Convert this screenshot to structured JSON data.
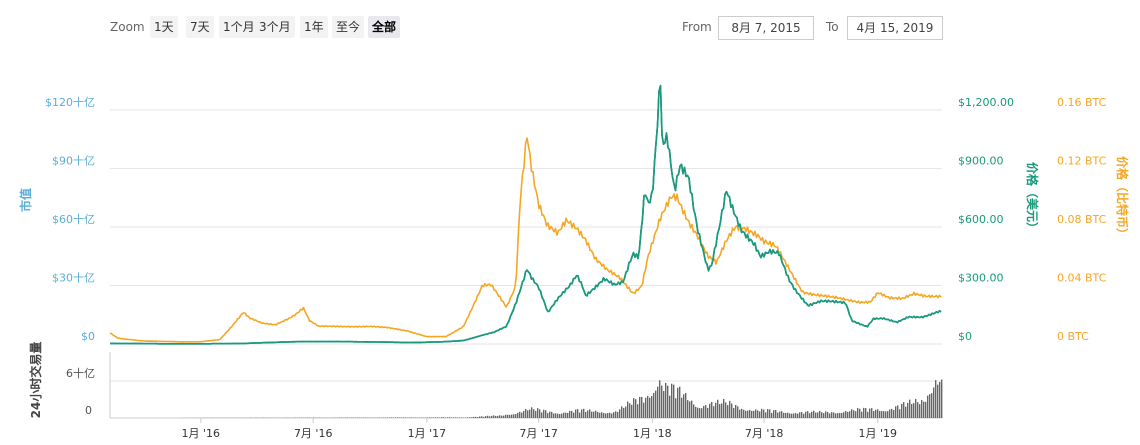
{
  "toolbar": {
    "zoom_label": "Zoom",
    "buttons": [
      "1天",
      "7天",
      "1个月",
      "3个月",
      "1年",
      "至今",
      "全部"
    ],
    "active_button": "全部",
    "from_label": "From",
    "from_value": "8月 7, 2015",
    "to_label": "To",
    "to_value": "4月 15, 2019"
  },
  "colors": {
    "market_cap": "#5aaed8",
    "price_usd": "#1a9a7a",
    "price_btc": "#f5a623",
    "volume": "#666666",
    "grid": "#e6e6e6"
  },
  "chart_data": {
    "type": "line",
    "x_tick_labels": [
      "1月 '16",
      "7月 '16",
      "1月 '17",
      "7月 '17",
      "1月 '18",
      "7月 '18",
      "1月 '19"
    ],
    "axes": {
      "market_cap": {
        "title": "市值",
        "ticks": [
          "$0",
          "$30十亿",
          "$60十亿",
          "$90十亿",
          "$120十亿"
        ],
        "range": [
          0,
          120
        ]
      },
      "price_usd": {
        "title": "价格（美元）",
        "ticks": [
          "$0",
          "$300.00",
          "$600.00",
          "$900.00",
          "$1,200.00"
        ],
        "range": [
          0,
          1200
        ]
      },
      "price_btc": {
        "title": "价格（比特币）",
        "ticks": [
          "0 BTC",
          "0.04 BTC",
          "0.08 BTC",
          "0.12 BTC",
          "0.16 BTC"
        ],
        "range": [
          0,
          0.16
        ]
      },
      "volume": {
        "title": "24小时交易量",
        "ticks": [
          "0",
          "6十亿"
        ],
        "range": [
          0,
          6
        ]
      }
    },
    "x_range": [
      "2015-08-07",
      "2019-04-15"
    ],
    "series": [
      {
        "name": "价格（美元）",
        "axis": "price_usd",
        "points": [
          [
            "2015-08-07",
            3
          ],
          [
            "2015-11-01",
            1
          ],
          [
            "2016-01-01",
            1
          ],
          [
            "2016-03-01",
            2
          ],
          [
            "2016-06-01",
            12
          ],
          [
            "2016-09-01",
            12
          ],
          [
            "2016-12-01",
            8
          ],
          [
            "2017-01-01",
            9
          ],
          [
            "2017-02-01",
            12
          ],
          [
            "2017-03-01",
            18
          ],
          [
            "2017-04-01",
            45
          ],
          [
            "2017-04-20",
            60
          ],
          [
            "2017-05-10",
            90
          ],
          [
            "2017-05-25",
            210
          ],
          [
            "2017-06-12",
            390
          ],
          [
            "2017-06-20",
            340
          ],
          [
            "2017-07-01",
            290
          ],
          [
            "2017-07-16",
            160
          ],
          [
            "2017-08-01",
            230
          ],
          [
            "2017-08-20",
            300
          ],
          [
            "2017-09-01",
            360
          ],
          [
            "2017-09-10",
            300
          ],
          [
            "2017-09-15",
            250
          ],
          [
            "2017-10-01",
            290
          ],
          [
            "2017-10-15",
            330
          ],
          [
            "2017-11-01",
            300
          ],
          [
            "2017-11-15",
            320
          ],
          [
            "2017-11-25",
            420
          ],
          [
            "2017-12-01",
            470
          ],
          [
            "2017-12-10",
            450
          ],
          [
            "2017-12-20",
            800
          ],
          [
            "2017-12-25",
            720
          ],
          [
            "2018-01-01",
            760
          ],
          [
            "2018-01-10",
            1150
          ],
          [
            "2018-01-14",
            1370
          ],
          [
            "2018-01-17",
            1000
          ],
          [
            "2018-01-25",
            1050
          ],
          [
            "2018-02-06",
            780
          ],
          [
            "2018-02-15",
            920
          ],
          [
            "2018-02-28",
            870
          ],
          [
            "2018-03-01",
            860
          ],
          [
            "2018-03-15",
            600
          ],
          [
            "2018-04-01",
            380
          ],
          [
            "2018-04-07",
            400
          ],
          [
            "2018-04-20",
            600
          ],
          [
            "2018-05-01",
            780
          ],
          [
            "2018-05-10",
            700
          ],
          [
            "2018-05-25",
            590
          ],
          [
            "2018-06-15",
            520
          ],
          [
            "2018-06-25",
            450
          ],
          [
            "2018-07-10",
            470
          ],
          [
            "2018-07-25",
            460
          ],
          [
            "2018-08-10",
            330
          ],
          [
            "2018-08-20",
            280
          ],
          [
            "2018-09-10",
            200
          ],
          [
            "2018-10-01",
            220
          ],
          [
            "2018-11-10",
            210
          ],
          [
            "2018-11-20",
            120
          ],
          [
            "2018-12-15",
            90
          ],
          [
            "2018-12-25",
            130
          ],
          [
            "2019-01-10",
            130
          ],
          [
            "2019-02-01",
            110
          ],
          [
            "2019-02-20",
            140
          ],
          [
            "2019-03-15",
            140
          ],
          [
            "2019-04-10",
            165
          ],
          [
            "2019-04-15",
            165
          ]
        ]
      },
      {
        "name": "价格（比特币）",
        "axis": "price_btc",
        "points": [
          [
            "2015-08-07",
            0.0075
          ],
          [
            "2015-08-20",
            0.004
          ],
          [
            "2015-10-01",
            0.002
          ],
          [
            "2015-12-01",
            0.0015
          ],
          [
            "2016-01-01",
            0.0015
          ],
          [
            "2016-02-01",
            0.003
          ],
          [
            "2016-02-20",
            0.012
          ],
          [
            "2016-03-10",
            0.022
          ],
          [
            "2016-03-20",
            0.018
          ],
          [
            "2016-04-10",
            0.014
          ],
          [
            "2016-05-01",
            0.013
          ],
          [
            "2016-05-20",
            0.017
          ],
          [
            "2016-06-01",
            0.02
          ],
          [
            "2016-06-15",
            0.025
          ],
          [
            "2016-06-25",
            0.016
          ],
          [
            "2016-07-10",
            0.012
          ],
          [
            "2016-08-10",
            0.012
          ],
          [
            "2016-10-01",
            0.012
          ],
          [
            "2016-11-01",
            0.011
          ],
          [
            "2016-12-01",
            0.009
          ],
          [
            "2017-01-01",
            0.005
          ],
          [
            "2017-02-01",
            0.005
          ],
          [
            "2017-03-01",
            0.012
          ],
          [
            "2017-03-10",
            0.02
          ],
          [
            "2017-04-01",
            0.04
          ],
          [
            "2017-04-15",
            0.04
          ],
          [
            "2017-05-10",
            0.025
          ],
          [
            "2017-05-25",
            0.04
          ],
          [
            "2017-06-01",
            0.1
          ],
          [
            "2017-06-12",
            0.145
          ],
          [
            "2017-06-20",
            0.12
          ],
          [
            "2017-07-01",
            0.095
          ],
          [
            "2017-07-15",
            0.08
          ],
          [
            "2017-08-01",
            0.075
          ],
          [
            "2017-08-15",
            0.085
          ],
          [
            "2017-09-01",
            0.08
          ],
          [
            "2017-09-15",
            0.072
          ],
          [
            "2017-10-01",
            0.058
          ],
          [
            "2017-10-20",
            0.05
          ],
          [
            "2017-11-10",
            0.045
          ],
          [
            "2017-12-01",
            0.035
          ],
          [
            "2017-12-15",
            0.04
          ],
          [
            "2017-12-25",
            0.06
          ],
          [
            "2018-01-10",
            0.08
          ],
          [
            "2018-01-14",
            0.085
          ],
          [
            "2018-02-01",
            0.1
          ],
          [
            "2018-02-10",
            0.1
          ],
          [
            "2018-02-28",
            0.085
          ],
          [
            "2018-03-15",
            0.075
          ],
          [
            "2018-04-01",
            0.06
          ],
          [
            "2018-04-15",
            0.055
          ],
          [
            "2018-05-01",
            0.07
          ],
          [
            "2018-05-15",
            0.08
          ],
          [
            "2018-06-01",
            0.08
          ],
          [
            "2018-06-20",
            0.075
          ],
          [
            "2018-07-01",
            0.07
          ],
          [
            "2018-07-20",
            0.066
          ],
          [
            "2018-08-15",
            0.048
          ],
          [
            "2018-09-01",
            0.036
          ],
          [
            "2018-09-20",
            0.034
          ],
          [
            "2018-10-15",
            0.032
          ],
          [
            "2018-11-15",
            0.03
          ],
          [
            "2018-12-01",
            0.029
          ],
          [
            "2018-12-20",
            0.029
          ],
          [
            "2019-01-01",
            0.035
          ],
          [
            "2019-01-20",
            0.031
          ],
          [
            "2019-02-10",
            0.031
          ],
          [
            "2019-03-01",
            0.035
          ],
          [
            "2019-03-20",
            0.033
          ],
          [
            "2019-04-15",
            0.032
          ]
        ]
      },
      {
        "name": "24小时交易量",
        "axis": "volume",
        "points": [
          [
            "2015-08-07",
            0
          ],
          [
            "2017-03-01",
            0.1
          ],
          [
            "2017-05-01",
            0.4
          ],
          [
            "2017-06-15",
            1.4
          ],
          [
            "2017-08-01",
            0.9
          ],
          [
            "2017-09-01",
            1.2
          ],
          [
            "2017-11-01",
            1.0
          ],
          [
            "2017-12-20",
            3.6
          ],
          [
            "2018-01-10",
            6.5
          ],
          [
            "2018-01-20",
            5.0
          ],
          [
            "2018-02-15",
            4.0
          ],
          [
            "2018-03-15",
            2.2
          ],
          [
            "2018-05-01",
            2.4
          ],
          [
            "2018-06-15",
            1.3
          ],
          [
            "2018-08-01",
            1.0
          ],
          [
            "2018-10-01",
            0.9
          ],
          [
            "2018-12-01",
            1.3
          ],
          [
            "2019-01-15",
            1.5
          ],
          [
            "2019-03-15",
            2.8
          ],
          [
            "2019-04-05",
            7.5
          ],
          [
            "2019-04-15",
            5.5
          ]
        ]
      }
    ],
    "grid": true,
    "legend": "none"
  }
}
